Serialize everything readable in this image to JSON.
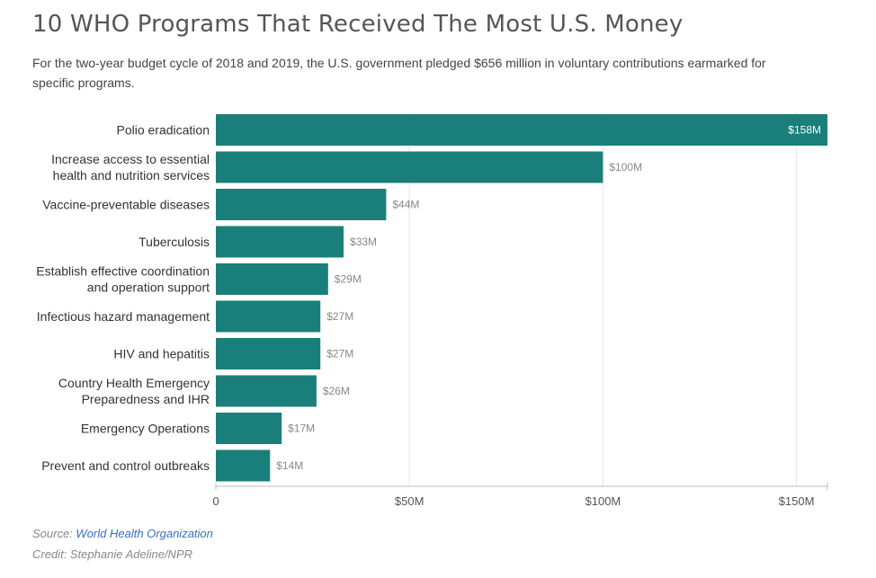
{
  "header": {
    "title": "10 WHO Programs That Received The Most U.S. Money",
    "subtitle": "For the two-year budget cycle of 2018 and 2019, the U.S. government pledged $656 million in voluntary contributions earmarked for specific programs."
  },
  "footer": {
    "source_prefix": "Source: ",
    "source_link": "World Health Organization",
    "credit": "Credit: Stephanie Adeline/NPR"
  },
  "chart_data": {
    "type": "bar",
    "orientation": "horizontal",
    "title": "10 WHO Programs That Received The Most U.S. Money",
    "categories": [
      [
        "Polio eradication"
      ],
      [
        "Increase access to essential",
        "health and nutrition services"
      ],
      [
        "Vaccine-preventable diseases"
      ],
      [
        "Tuberculosis"
      ],
      [
        "Establish effective coordination",
        "and operation support"
      ],
      [
        "Infectious hazard management"
      ],
      [
        "HIV and hepatitis"
      ],
      [
        "Country Health Emergency",
        "Preparedness and IHR"
      ],
      [
        "Emergency Operations"
      ],
      [
        "Prevent and control outbreaks"
      ]
    ],
    "values": [
      158,
      100,
      44,
      33,
      29,
      27,
      27,
      26,
      17,
      14
    ],
    "value_labels": [
      "$158M",
      "$100M",
      "$44M",
      "$33M",
      "$29M",
      "$27M",
      "$27M",
      "$26M",
      "$17M",
      "$14M"
    ],
    "xlim": [
      0,
      158
    ],
    "ticks": [
      0,
      50,
      100,
      150
    ],
    "tick_labels": [
      "0",
      "$50M",
      "$100M",
      "$150M"
    ],
    "grid": true,
    "bar_color": "#1a7f7a",
    "grid_color": "#e2e2e2"
  }
}
